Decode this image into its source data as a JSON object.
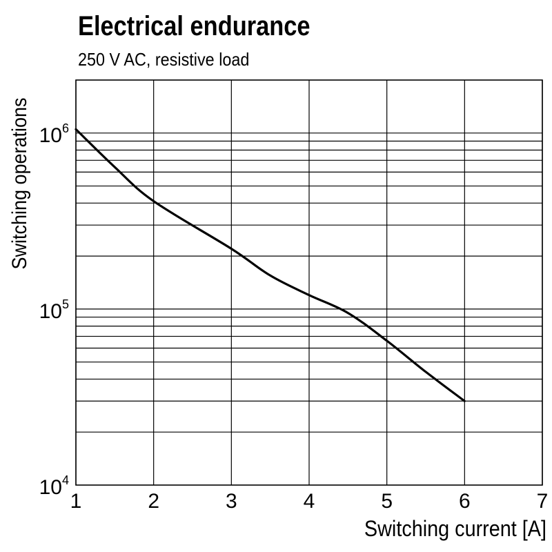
{
  "chart_data": {
    "type": "line",
    "title": "Electrical endurance",
    "subtitle": "250 V AC, resistive load",
    "xlabel": "Switching current [A]",
    "ylabel": "Switching operations",
    "xlim": [
      1,
      7
    ],
    "ylim": [
      10000,
      2000000
    ],
    "y_scale": "log",
    "grid": true,
    "x_ticks": [
      "1",
      "2",
      "3",
      "4",
      "5",
      "6",
      "7"
    ],
    "y_ticks": [
      {
        "value": 1000000,
        "base": "10",
        "exp": "6"
      },
      {
        "value": 100000,
        "base": "10",
        "exp": "5"
      },
      {
        "value": 10000,
        "base": "10",
        "exp": "4"
      }
    ],
    "series": [
      {
        "x": [
          1,
          1.5,
          2,
          3,
          3.5,
          4,
          4.5,
          5,
          5.5,
          6
        ],
        "y": [
          1050000,
          640000,
          410000,
          220000,
          155000,
          120000,
          95000,
          66000,
          44000,
          30000
        ]
      }
    ]
  }
}
